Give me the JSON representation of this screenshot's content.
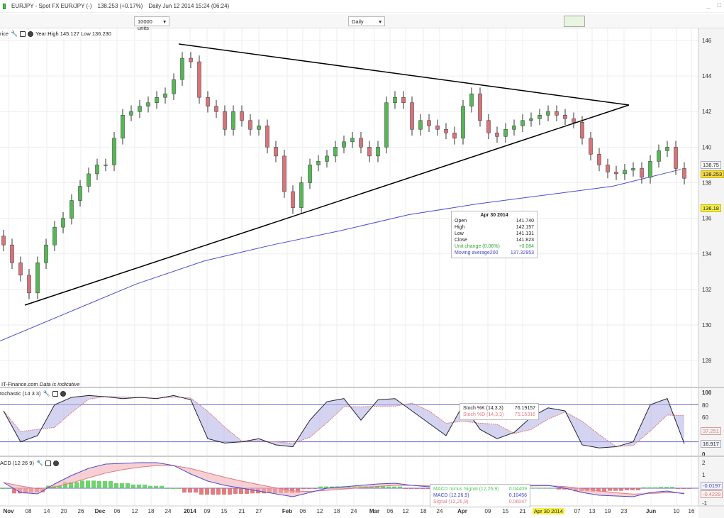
{
  "header": {
    "symbol": "EURJPY - Spot FX EUR/JPY (-)",
    "price": "138.253 (+0.17%)",
    "info": "Daily  Jun 12 2014 15:24 (06:24)",
    "window_buttons": [
      "_",
      "□"
    ]
  },
  "toolbar": {
    "units": "10000 units",
    "interval": "Daily"
  },
  "price_panel": {
    "title": "rice",
    "stats": "Year:High 145.127 Low 136.230",
    "source": "IT-Finance.com",
    "disclaimer": "Data is indicative",
    "yticks": [
      "146",
      "144",
      "142",
      "140",
      "138",
      "136",
      "134",
      "132",
      "130",
      "128"
    ],
    "tags": {
      "ma": "138.75",
      "last": "138.253",
      "low": "136.18"
    }
  },
  "tooltip": {
    "date": "Apr 30 2014",
    "rows": [
      [
        "Open",
        "141.740"
      ],
      [
        "High",
        "142.157"
      ],
      [
        "Low",
        "141.131"
      ],
      [
        "Close",
        "141.823"
      ]
    ],
    "change": [
      "Unit change (0.06%)",
      "+0.084"
    ],
    "ma": [
      "Moving average200",
      "137.32953"
    ]
  },
  "stoch_panel": {
    "title": "tochastic (14 3 3)",
    "yticks": [
      "100",
      "80",
      "60",
      "0"
    ],
    "tags": [
      "37.251",
      "16.917"
    ],
    "tip": [
      [
        "Stoch %K (14,3,3)",
        "76.19157"
      ],
      [
        "Stoch %D (14,3,3)",
        "75.15316"
      ]
    ]
  },
  "macd_panel": {
    "title": "ACD (12 26 9)",
    "yticks": [
      "2",
      "1",
      "-1"
    ],
    "tags": [
      "-0.0197",
      "-0.4229"
    ],
    "tip": [
      [
        "MACD minus Signal (12,26,9)",
        "0.04409"
      ],
      [
        "MACD (12,26,9)",
        "0.10456"
      ],
      [
        "Signal (12,26,9)",
        "0.06047"
      ]
    ]
  },
  "xaxis": [
    "Nov",
    "08",
    "14",
    "20",
    "26",
    "Dec",
    "06",
    "12",
    "18",
    "24",
    "2014",
    "09",
    "15",
    "21",
    "27",
    "Feb",
    "06",
    "12",
    "18",
    "24",
    "Mar",
    "06",
    "12",
    "18",
    "24",
    "Apr",
    "09",
    "15",
    "21",
    "Apr 30 2014",
    "07",
    "13",
    "19",
    "23",
    "Jun",
    "10",
    "16"
  ],
  "colors": {
    "up": "#55b855",
    "down": "#d9737a",
    "ma": "#4b4bd0",
    "stochK": "#223",
    "stochD": "#e07a80"
  },
  "chart_data": {
    "type": "candlestick",
    "closes": [
      134.5,
      133.5,
      132.8,
      131.8,
      133.5,
      134.5,
      135.5,
      136,
      137,
      137.8,
      138.5,
      139,
      139,
      140.5,
      141.8,
      142,
      142.3,
      142.5,
      142.8,
      143,
      143.8,
      145,
      144.8,
      142.8,
      142.3,
      142,
      141,
      142,
      141.5,
      141,
      141.2,
      140,
      139.5,
      137.5,
      136.6,
      138,
      139,
      139.2,
      139.5,
      140,
      140.3,
      140.5,
      140,
      139.5,
      140,
      142.5,
      142.8,
      142.5,
      141,
      141.5,
      141.2,
      141,
      140.8,
      140.5,
      142.3,
      143,
      141.5,
      140.8,
      140.6,
      141,
      141.2,
      141.5,
      141.6,
      141.8,
      142,
      141.8,
      141.6,
      141.4,
      140.5,
      139.6,
      139,
      138.6,
      138.5,
      138.7,
      138.8,
      138.3,
      139.2,
      139.8,
      140,
      138.8,
      138.25
    ],
    "ma200": [
      129.1,
      130.7,
      132.3,
      133.6,
      134.5,
      135.3,
      136.2,
      136.8,
      137.3,
      137.8,
      138.75
    ],
    "stochK": [
      70,
      20,
      30,
      80,
      92,
      95,
      93,
      90,
      92,
      90,
      95,
      88,
      25,
      18,
      20,
      25,
      15,
      12,
      55,
      85,
      90,
      55,
      88,
      90,
      70,
      50,
      30,
      80,
      40,
      25,
      35,
      60,
      75,
      70,
      15,
      10,
      12,
      20,
      80,
      90,
      17
    ],
    "macd": [
      0.4,
      -0.3,
      -0.4,
      0.3,
      0.9,
      1.4,
      1.7,
      1.75,
      1.8,
      1.8,
      1.6,
      1.0,
      0.5,
      0.2,
      0,
      -0.2,
      -0.4,
      -0.6,
      -0.3,
      0,
      0.1,
      0.2,
      0.3,
      0.35,
      0.2,
      0.1,
      0.1,
      0.2,
      0.15,
      0.1,
      0.15,
      0.2,
      0.2,
      0,
      -0.3,
      -0.5,
      -0.55,
      -0.6,
      -0.3,
      -0.2,
      -0.4
    ],
    "ylim": [
      127,
      146.5
    ]
  }
}
